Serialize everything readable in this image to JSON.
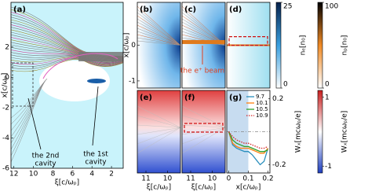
{
  "chart_data": [
    {
      "type": "heatmap",
      "label": "(a)",
      "xlabel": "ξ[c/ωₚ]",
      "ylabel": "x[c/ωₚ]",
      "xlim": [
        12.3,
        0.8
      ],
      "xticks": [
        12,
        10,
        8,
        6,
        4,
        2
      ],
      "ylim": [
        -6,
        4.95
      ],
      "yticks": [
        2,
        0,
        -2,
        -4,
        -6
      ],
      "annotations": [
        [
          "the 2nd",
          "cavity"
        ],
        [
          "the 1st",
          "cavity"
        ]
      ]
    },
    {
      "type": "heatmap",
      "label": "(b)",
      "ylabel": "x[c/ωₚ]",
      "ylim": [
        -1.2,
        1.2
      ],
      "yticks": [
        0,
        -1
      ]
    },
    {
      "type": "heatmap",
      "label": "(c)",
      "annotations": [
        [
          "the e⁺ beam"
        ]
      ]
    },
    {
      "type": "heatmap",
      "label": "(d)"
    },
    {
      "type": "heatmap",
      "label": "(e)",
      "xlabel": "ξ[c/ωₚ]",
      "xlim": [
        11.4,
        9.4
      ],
      "xticks": [
        11,
        10
      ]
    },
    {
      "type": "heatmap",
      "label": "(f)",
      "xlabel": "ξ[c/ωₚ]",
      "xlim": [
        11.4,
        9.4
      ],
      "xticks": [
        11,
        10
      ]
    },
    {
      "type": "line",
      "label": "(g)",
      "xlabel": "x[c/ωₚ]",
      "ylabel": "Wₓ[mcωₚ/e]",
      "xlim": [
        -0.01,
        0.21
      ],
      "xticks": [
        0,
        0.1,
        0.2
      ],
      "ylim": [
        -0.25,
        0.25
      ],
      "yticks": [
        0.2,
        -0.2
      ],
      "x": [
        0,
        0.02,
        0.04,
        0.06,
        0.08,
        0.1,
        0.12,
        0.14,
        0.16,
        0.18,
        0.2
      ],
      "series": [
        {
          "name": "9.7",
          "color": "#2a8fbd",
          "linestyle": "solid",
          "values": [
            0.0,
            -0.08,
            -0.1,
            -0.11,
            -0.12,
            -0.12,
            -0.14,
            -0.17,
            -0.2,
            -0.18,
            -0.1
          ]
        },
        {
          "name": "10.1",
          "color": "#ff7f0e",
          "linestyle": "solid",
          "values": [
            0.0,
            -0.07,
            -0.09,
            -0.1,
            -0.1,
            -0.1,
            -0.11,
            -0.12,
            -0.13,
            -0.13,
            -0.1
          ]
        },
        {
          "name": "10.5",
          "color": "#2ca02c",
          "linestyle": "solid",
          "values": [
            0.0,
            -0.05,
            -0.07,
            -0.08,
            -0.09,
            -0.09,
            -0.1,
            -0.11,
            -0.12,
            -0.12,
            -0.11
          ]
        },
        {
          "name": "10.9",
          "color": "#d62728",
          "linestyle": "dotted",
          "values": [
            0.0,
            -0.03,
            -0.05,
            -0.06,
            -0.07,
            -0.07,
            -0.08,
            -0.09,
            -0.1,
            -0.1,
            -0.09
          ]
        }
      ]
    },
    {
      "type": "colorbar",
      "label": "nₑ[n₀]",
      "ylim": [
        0,
        25
      ],
      "yticks": [
        25,
        0
      ],
      "colors": [
        "#ffffff",
        "#3aa0e0",
        "#06204a"
      ]
    },
    {
      "type": "colorbar",
      "label": "nₚ[n₀]",
      "ylim": [
        0,
        100
      ],
      "yticks": [
        100,
        0
      ],
      "colors": [
        "#ffffff",
        "#f08a24",
        "#000000"
      ]
    },
    {
      "type": "colorbar",
      "label": "Wₓ[mcωₚ/e]",
      "ylim": [
        -1.2,
        1.2
      ],
      "yticks": [
        1,
        -1
      ],
      "colors": [
        "#1f3fbf",
        "#ffffff",
        "#c81e1e"
      ]
    }
  ]
}
